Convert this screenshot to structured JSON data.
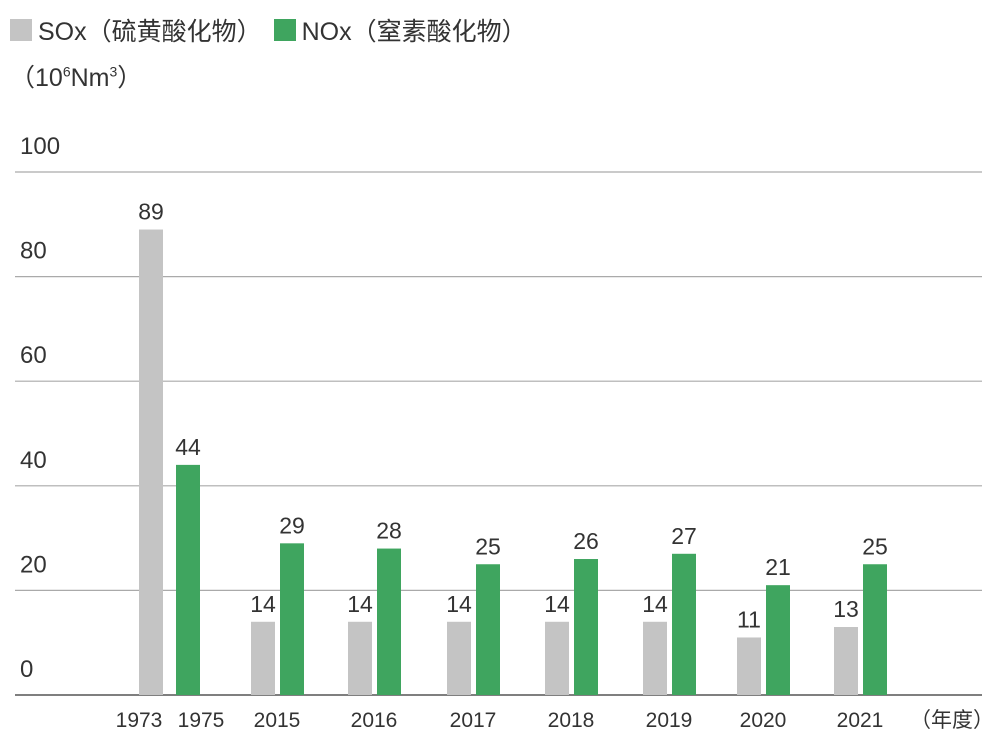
{
  "colors": {
    "sox": "#c4c4c4",
    "nox": "#3fa55f",
    "grid": "#aaaaaa",
    "axis": "#555555",
    "text": "#333333"
  },
  "legend": {
    "sox_label": "SOx（硫黄酸化物）",
    "nox_label": "NOx（窒素酸化物）"
  },
  "unit": {
    "prefix": "（10",
    "exp1": "6",
    "mid": "Nm",
    "exp2": "3",
    "suffix": "）"
  },
  "chart_data": {
    "type": "bar",
    "title": "",
    "xlabel": "（年度）",
    "ylabel": "",
    "ylim": [
      0,
      100
    ],
    "yticks": [
      0,
      20,
      40,
      60,
      80,
      100
    ],
    "groups": [
      {
        "label": "1973",
        "series": "SOx",
        "value": 89
      },
      {
        "label": "1975",
        "series": "NOx",
        "value": 44
      },
      {
        "label": "2015",
        "sox": 14,
        "nox": 29
      },
      {
        "label": "2016",
        "sox": 14,
        "nox": 28
      },
      {
        "label": "2017",
        "sox": 14,
        "nox": 25
      },
      {
        "label": "2018",
        "sox": 14,
        "nox": 26
      },
      {
        "label": "2019",
        "sox": 14,
        "nox": 27
      },
      {
        "label": "2020",
        "sox": 11,
        "nox": 21
      },
      {
        "label": "2021",
        "sox": 13,
        "nox": 25
      }
    ],
    "series": [
      {
        "name": "SOx（硫黄酸化物）",
        "key": "sox"
      },
      {
        "name": "NOx（窒素酸化物）",
        "key": "nox"
      }
    ]
  }
}
